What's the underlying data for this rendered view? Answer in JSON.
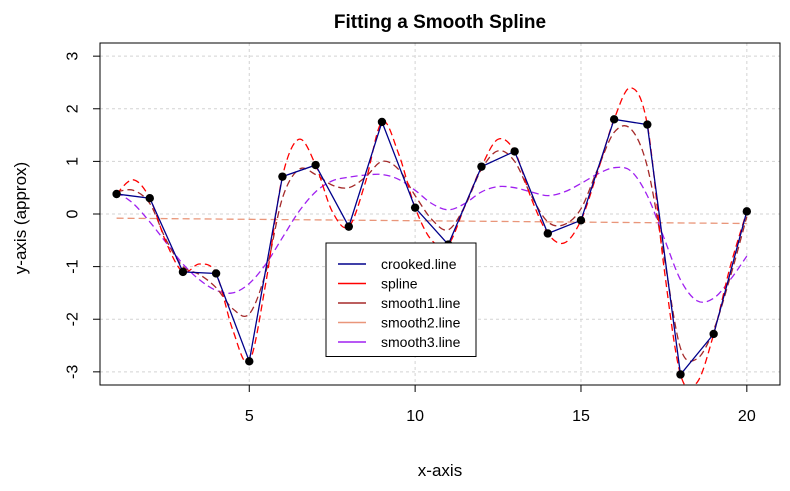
{
  "chart_data": {
    "type": "line",
    "title": "Fitting a Smooth Spline",
    "xlabel": "x-axis",
    "ylabel": "y-axis (approx)",
    "xlim": [
      0.5,
      21
    ],
    "ylim": [
      -3.25,
      3.25
    ],
    "x_ticks": [
      5,
      10,
      15,
      20
    ],
    "y_ticks": [
      -3,
      -2,
      -1,
      0,
      1,
      2,
      3
    ],
    "grid": true,
    "legend_position": "bottom-center",
    "points": {
      "x": [
        1,
        2,
        3,
        4,
        5,
        6,
        7,
        8,
        9,
        10,
        11,
        12,
        13,
        14,
        15,
        16,
        17,
        18,
        19,
        20
      ],
      "y": [
        0.38,
        0.3,
        -1.1,
        -1.13,
        -2.8,
        0.71,
        0.93,
        -0.24,
        1.75,
        0.12,
        -0.58,
        0.9,
        1.19,
        -0.37,
        -0.12,
        1.8,
        1.7,
        -3.05,
        -2.28,
        0.05
      ]
    },
    "series": [
      {
        "name": "crooked.line",
        "color": "#00008b",
        "dash": "solid",
        "x": [
          1,
          2,
          3,
          4,
          5,
          6,
          7,
          8,
          9,
          10,
          11,
          12,
          13,
          14,
          15,
          16,
          17,
          18,
          19,
          20
        ],
        "y": [
          0.38,
          0.3,
          -1.1,
          -1.13,
          -2.8,
          0.71,
          0.93,
          -0.24,
          1.75,
          0.12,
          -0.58,
          0.9,
          1.19,
          -0.37,
          -0.12,
          1.8,
          1.7,
          -3.05,
          -2.28,
          0.05
        ]
      },
      {
        "name": "spline",
        "color": "#ff0000",
        "dash": "dashed",
        "x": [
          1,
          1.5,
          2,
          2.5,
          3,
          3.5,
          4,
          4.5,
          5,
          5.5,
          6,
          6.5,
          7,
          7.5,
          8,
          8.5,
          9,
          9.5,
          10,
          10.5,
          11,
          11.5,
          12,
          12.5,
          13,
          13.5,
          14,
          14.5,
          15,
          15.5,
          16,
          16.5,
          17,
          17.5,
          18,
          18.5,
          19,
          19.5,
          20
        ],
        "y": [
          0.38,
          0.65,
          0.3,
          -0.55,
          -1.1,
          -0.95,
          -1.13,
          -2.2,
          -2.8,
          -1.3,
          0.71,
          1.42,
          0.93,
          0.05,
          -0.24,
          0.6,
          1.75,
          1.15,
          0.12,
          -0.5,
          -0.58,
          0.15,
          0.9,
          1.42,
          1.19,
          0.3,
          -0.37,
          -0.55,
          -0.12,
          0.8,
          1.8,
          2.4,
          1.7,
          -1.0,
          -3.05,
          -3.2,
          -2.28,
          -1.0,
          0.05
        ]
      },
      {
        "name": "smooth1.line",
        "color": "#a52a2a",
        "dash": "dashed",
        "x": [
          1,
          1.5,
          2,
          2.5,
          3,
          3.5,
          4,
          4.5,
          5,
          5.5,
          6,
          6.5,
          7,
          7.5,
          8,
          8.5,
          9,
          9.5,
          10,
          10.5,
          11,
          11.5,
          12,
          12.5,
          13,
          13.5,
          14,
          14.5,
          15,
          15.5,
          16,
          16.5,
          17,
          17.5,
          18,
          18.5,
          19,
          19.5,
          20
        ],
        "y": [
          0.42,
          0.45,
          0.2,
          -0.5,
          -1.0,
          -1.15,
          -1.4,
          -1.8,
          -1.9,
          -1.1,
          0.3,
          0.85,
          0.75,
          0.55,
          0.5,
          0.7,
          1.0,
          0.85,
          0.35,
          -0.1,
          -0.3,
          0.15,
          0.85,
          1.2,
          1.0,
          0.35,
          -0.15,
          -0.2,
          0.1,
          0.85,
          1.55,
          1.62,
          0.9,
          -0.8,
          -2.55,
          -2.75,
          -2.2,
          -1.2,
          -0.05
        ]
      },
      {
        "name": "smooth2.line",
        "color": "#e9967a",
        "dash": "dashed",
        "x": [
          1,
          20
        ],
        "y": [
          -0.08,
          -0.18
        ]
      },
      {
        "name": "smooth3.line",
        "color": "#a020f0",
        "dash": "dashed",
        "x": [
          1,
          1.5,
          2,
          2.5,
          3,
          3.5,
          4,
          4.5,
          5,
          5.5,
          6,
          6.5,
          7,
          7.5,
          8,
          8.5,
          9,
          9.5,
          10,
          10.5,
          11,
          11.5,
          12,
          12.5,
          13,
          13.5,
          14,
          14.5,
          15,
          15.5,
          16,
          16.5,
          17,
          17.5,
          18,
          18.5,
          19,
          19.5,
          20
        ],
        "y": [
          0.42,
          0.2,
          -0.15,
          -0.55,
          -0.95,
          -1.25,
          -1.45,
          -1.5,
          -1.32,
          -0.95,
          -0.45,
          0.05,
          0.42,
          0.63,
          0.7,
          0.74,
          0.75,
          0.66,
          0.45,
          0.2,
          0.08,
          0.2,
          0.42,
          0.52,
          0.5,
          0.42,
          0.35,
          0.42,
          0.58,
          0.76,
          0.88,
          0.82,
          0.35,
          -0.45,
          -1.25,
          -1.65,
          -1.6,
          -1.25,
          -0.8
        ]
      }
    ]
  }
}
